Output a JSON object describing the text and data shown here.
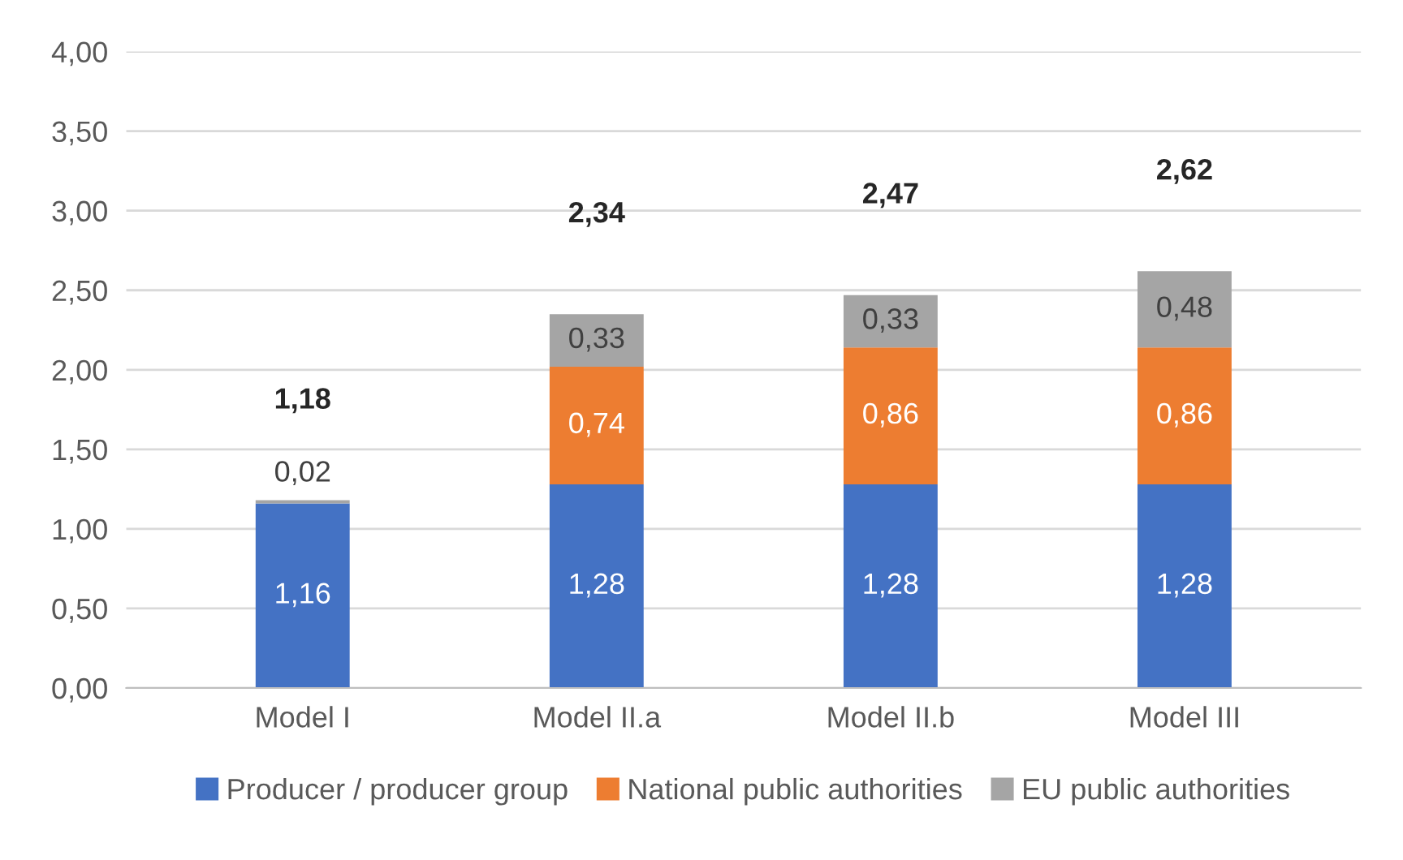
{
  "chart_data": {
    "type": "bar",
    "stacked": true,
    "categories": [
      "Model I",
      "Model II.a",
      "Model II.b",
      "Model III"
    ],
    "series": [
      {
        "name": "Producer / producer group",
        "color": "#4472c4",
        "values": [
          1.16,
          1.28,
          1.28,
          1.28
        ],
        "value_labels": [
          "1,16",
          "1,28",
          "1,28",
          "1,28"
        ]
      },
      {
        "name": "National public authorities",
        "color": "#ed7d31",
        "values": [
          null,
          0.74,
          0.86,
          0.86
        ],
        "value_labels": [
          null,
          "0,74",
          "0,86",
          "0,86"
        ]
      },
      {
        "name": "EU public authorities",
        "color": "#a5a5a5",
        "values": [
          0.02,
          0.33,
          0.33,
          0.48
        ],
        "value_labels": [
          "0,02",
          "0,33",
          "0,33",
          "0,48"
        ]
      }
    ],
    "totals": [
      "1,18",
      "2,34",
      "2,47",
      "2,62"
    ],
    "ylim": [
      0,
      4
    ],
    "yticks": [
      {
        "value": 0,
        "label": "0,00"
      },
      {
        "value": 0.5,
        "label": "0,50"
      },
      {
        "value": 1,
        "label": "1,00"
      },
      {
        "value": 1.5,
        "label": "1,50"
      },
      {
        "value": 2,
        "label": "2,00"
      },
      {
        "value": 2.5,
        "label": "2,50"
      },
      {
        "value": 3,
        "label": "3,00"
      },
      {
        "value": 3.5,
        "label": "3,50"
      },
      {
        "value": 4,
        "label": "4,00"
      }
    ],
    "grid": "y",
    "legend": "bottom"
  }
}
